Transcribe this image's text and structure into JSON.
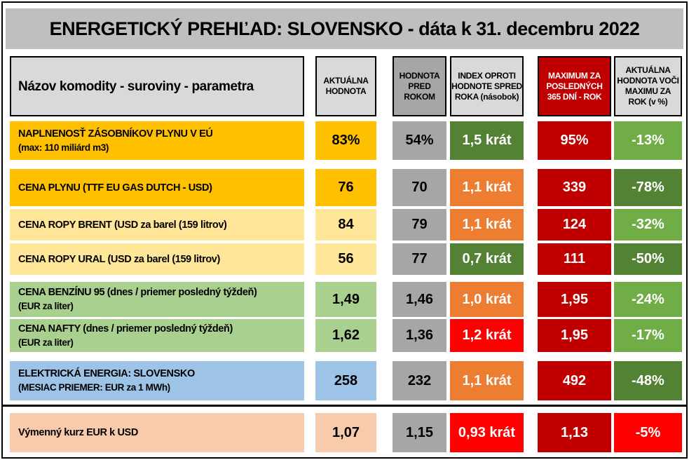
{
  "title": "ENERGETICKÝ PREHĽAD: SLOVENSKO - dáta k 31. decembru 2022",
  "headers": [
    {
      "label": "Názov komodity - suroviny - parametra",
      "bg": "#d9d9d9",
      "color": "#000000"
    },
    {
      "label": "AKTUÁLNA HODNOTA",
      "bg": "#d9d9d9",
      "color": "#000000"
    },
    {
      "label": "HODNOTA PRED ROKOM",
      "bg": "#a6a6a6",
      "color": "#000000"
    },
    {
      "label": "INDEX OPROTI HODNOTE SPRED ROKA (násobok)",
      "bg": "#d9d9d9",
      "color": "#000000"
    },
    {
      "label": "MAXIMUM ZA POSLEDNÝCH 365 DNÍ - ROK",
      "bg": "#c00000",
      "color": "#ffffff"
    },
    {
      "label": "AKTUÁLNA HODNOTA VOČI MAXIMU ZA ROK (v %)",
      "bg": "#d9d9d9",
      "color": "#000000"
    }
  ],
  "rows": [
    {
      "name": "NAPLNENOSŤ ZÁSOBNÍKOV PLYNU V EÚ",
      "sub": "(max: 110 miliárd m3)",
      "current": "83%",
      "previous": "54%",
      "index": "1,5 krát",
      "max": "95%",
      "vs_max": "-13%",
      "name_bg": "#ffc000",
      "index_bg": "#548235",
      "vs_bg": "#70ad47"
    },
    {
      "name": "CENA PLYNU (TTF EU GAS DUTCH - USD)",
      "sub": "",
      "current": "76",
      "previous": "70",
      "index": "1,1 krát",
      "max": "339",
      "vs_max": "-78%",
      "name_bg": "#ffc000",
      "index_bg": "#ed7d31",
      "vs_bg": "#548235"
    },
    {
      "name": "CENA ROPY BRENT (USD za barel (159 litrov)",
      "sub": "",
      "current": "84",
      "previous": "79",
      "index": "1,1 krát",
      "max": "124",
      "vs_max": "-32%",
      "name_bg": "#ffe699",
      "index_bg": "#ed7d31",
      "vs_bg": "#70ad47"
    },
    {
      "name": "CENA ROPY URAL (USD za barel (159 litrov)",
      "sub": "",
      "current": "56",
      "previous": "77",
      "index": "0,7 krát",
      "max": "111",
      "vs_max": "-50%",
      "name_bg": "#ffe699",
      "index_bg": "#548235",
      "vs_bg": "#548235"
    },
    {
      "name": "CENA BENZÍNU 95 (dnes / priemer posledný týždeň)",
      "sub": "(EUR za liter)",
      "current": "1,49",
      "previous": "1,46",
      "index": "1,0 krát",
      "max": "1,95",
      "vs_max": "-24%",
      "name_bg": "#a9d08e",
      "index_bg": "#ed7d31",
      "vs_bg": "#70ad47"
    },
    {
      "name": "CENA NAFTY (dnes / priemer posledný týždeň)",
      "sub": "(EUR za liter)",
      "current": "1,62",
      "previous": "1,36",
      "index": "1,2 krát",
      "max": "1,95",
      "vs_max": "-17%",
      "name_bg": "#a9d08e",
      "index_bg": "#ff0000",
      "vs_bg": "#70ad47"
    },
    {
      "name": "ELEKTRICKÁ ENERGIA: SLOVENSKO",
      "sub": "(MESIAC PRIEMER: EUR za 1 MWh)",
      "current": "258",
      "previous": "232",
      "index": "1,1 krát",
      "max": "492",
      "vs_max": "-48%",
      "name_bg": "#9dc3e6",
      "index_bg": "#ed7d31",
      "vs_bg": "#548235"
    },
    {
      "name": "Výmenný kurz EUR k USD",
      "sub": "",
      "current": "1,07",
      "previous": "1,15",
      "index": "0,93 krát",
      "max": "1,13",
      "vs_max": "-5%",
      "name_bg": "#f8cbad",
      "index_bg": "#ff0000",
      "vs_bg": "#ff0000"
    }
  ],
  "colors": {
    "previous_bg": "#a6a6a6",
    "max_bg": "#c00000",
    "title_bg": "#bfbfbf"
  }
}
